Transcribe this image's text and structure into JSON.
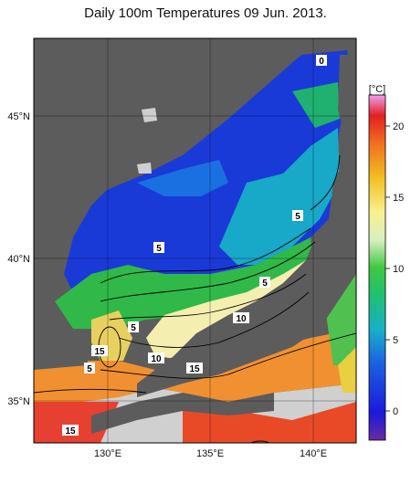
{
  "title": "Daily 100m Temperatures 09 Jun. 2013.",
  "unit_label": "[°C]",
  "lon_ticks": [
    "130°E",
    "135°E",
    "140°E"
  ],
  "lat_ticks": [
    "45°N",
    "40°N",
    "35°N"
  ],
  "colorbar_ticks": [
    "20",
    "15",
    "10",
    "5",
    "0"
  ],
  "contour_labels": [
    "0",
    "5",
    "5",
    "5",
    "5",
    "10",
    "10",
    "15",
    "15",
    "15",
    "5",
    "5"
  ],
  "colors": {
    "land": "#5a5a5a",
    "no_data": "#d6d6d6",
    "cold": "#1a2fd0",
    "mid": "#1ab0a0",
    "warm": "#e8e020",
    "hot": "#e83a20"
  }
}
